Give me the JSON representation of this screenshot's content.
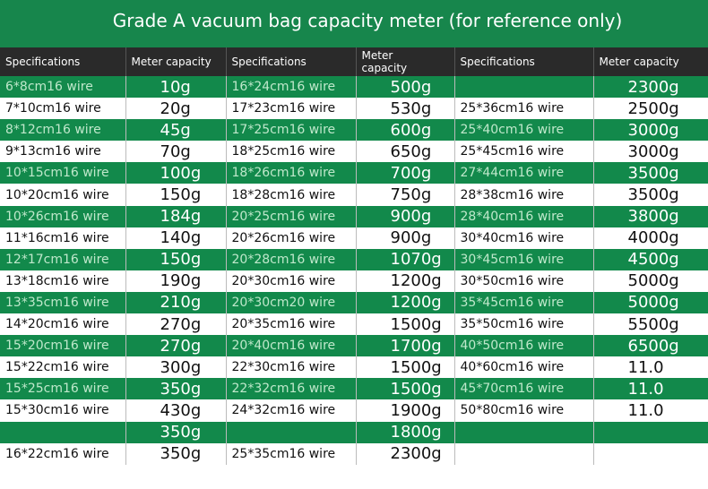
{
  "header": {
    "title": "Grade A vacuum bag capacity meter (for reference only)"
  },
  "table": {
    "columns": [
      "Specifications",
      "Meter capacity",
      "Specifications",
      "Meter\ncapacity",
      "Specifications",
      "Meter capacity"
    ],
    "rows": [
      [
        "6*8cm16 wire",
        "10g",
        "16*24cm16 wire",
        "500g",
        null,
        "2300g"
      ],
      [
        "7*10cm16 wire",
        "20g",
        "17*23cm16 wire",
        "530g",
        "25*36cm16 wire",
        "2500g"
      ],
      [
        "8*12cm16 wire",
        "45g",
        "17*25cm16 wire",
        "600g",
        "25*40cm16 wire",
        "3000g"
      ],
      [
        "9*13cm16 wire",
        "70g",
        "18*25cm16 wire",
        "650g",
        "25*45cm16 wire",
        "3000g"
      ],
      [
        "10*15cm16 wire",
        "100g",
        "18*26cm16 wire",
        "700g",
        "27*44cm16 wire",
        "3500g"
      ],
      [
        "10*20cm16 wire",
        "150g",
        "18*28cm16 wire",
        "750g",
        "28*38cm16 wire",
        "3500g"
      ],
      [
        "10*26cm16 wire",
        "184g",
        "20*25cm16 wire",
        "900g",
        "28*40cm16 wire",
        "3800g"
      ],
      [
        "11*16cm16 wire",
        "140g",
        "20*26cm16 wire",
        "900g",
        "30*40cm16 wire",
        "4000g"
      ],
      [
        "12*17cm16 wire",
        "150g",
        "20*28cm16 wire",
        "1070g",
        "30*45cm16 wire",
        "4500g"
      ],
      [
        "13*18cm16 wire",
        "190g",
        "20*30cm16 wire",
        "1200g",
        "30*50cm16 wire",
        "5000g"
      ],
      [
        "13*35cm16 wire",
        "210g",
        "20*30cm20 wire",
        "1200g",
        "35*45cm16 wire",
        "5000g"
      ],
      [
        "14*20cm16 wire",
        "270g",
        "20*35cm16 wire",
        "1500g",
        "35*50cm16 wire",
        "5500g"
      ],
      [
        "15*20cm16 wire",
        "270g",
        "20*40cm16 wire",
        "1700g",
        "40*50cm16 wire",
        "6500g"
      ],
      [
        "15*22cm16 wire",
        "300g",
        "22*30cm16 wire",
        "1500g",
        "40*60cm16 wire",
        "11.0"
      ],
      [
        "15*25cm16 wire",
        "350g",
        "22*32cm16 wire",
        "1500g",
        "45*70cm16 wire",
        "11.0"
      ],
      [
        "15*30cm16 wire",
        "430g",
        "24*32cm16 wire",
        "1900g",
        "50*80cm16 wire",
        "11.0"
      ],
      [
        null,
        "350g",
        null,
        "1800g",
        null,
        null
      ],
      [
        "16*22cm16 wire",
        "350g",
        "25*35cm16 wire",
        "2300g",
        null,
        null
      ]
    ]
  }
}
